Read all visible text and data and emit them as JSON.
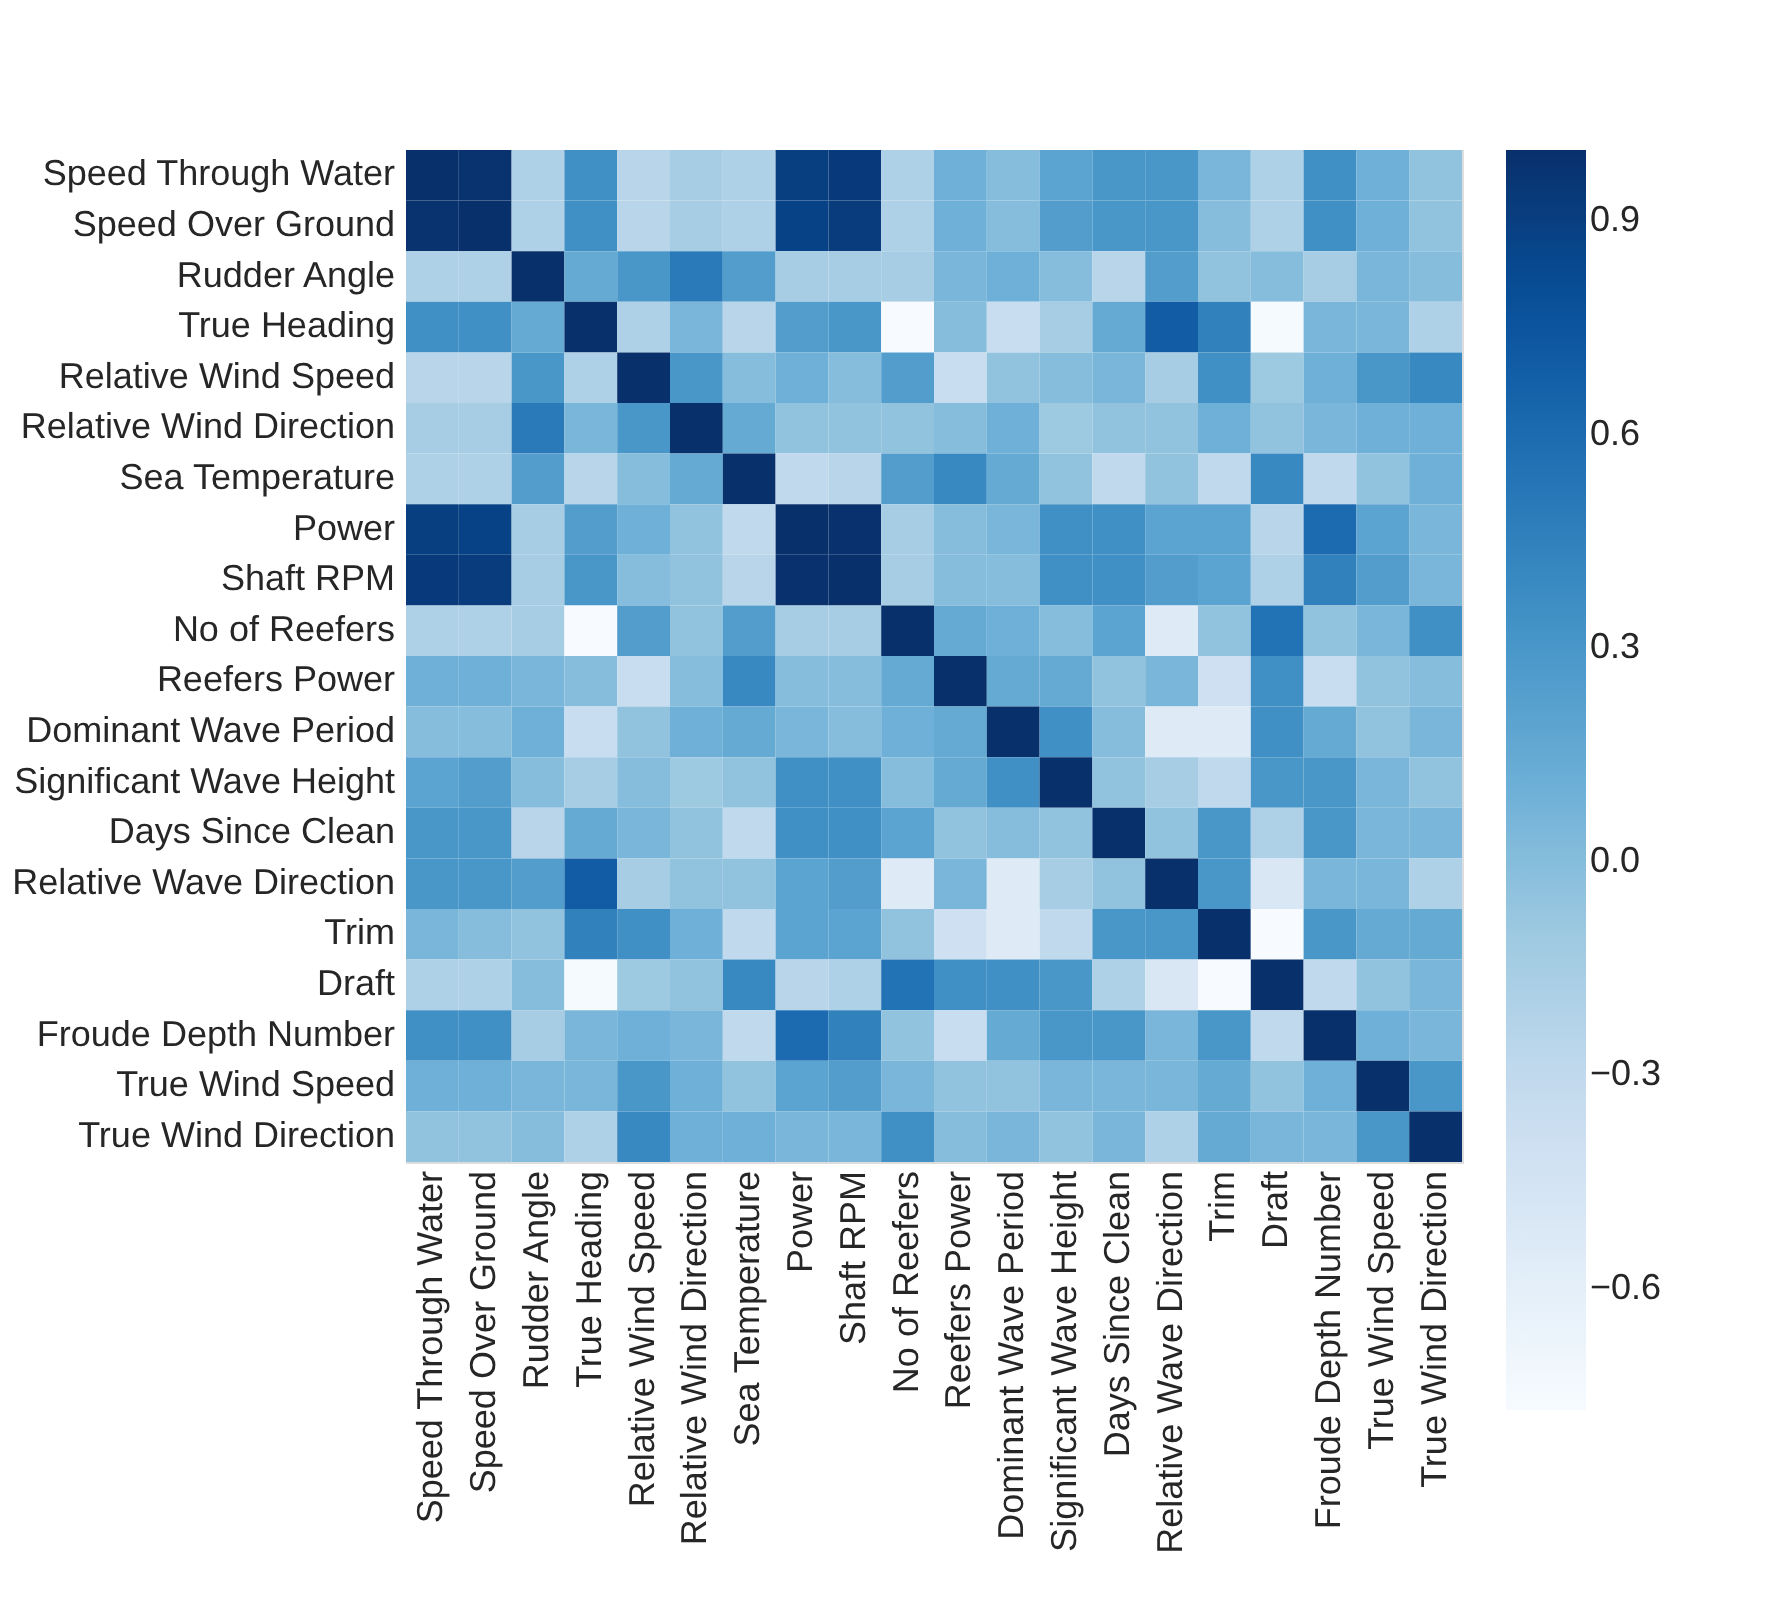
{
  "chart_data": {
    "type": "heatmap",
    "categories": [
      "Speed Through Water",
      "Speed Over Ground",
      "Rudder Angle",
      "True Heading",
      "Relative Wind Speed",
      "Relative Wind Direction",
      "Sea Temperature",
      "Power",
      "Shaft RPM",
      "No of Reefers",
      "Reefers Power",
      "Dominant Wave Period",
      "Significant Wave Height",
      "Days Since Clean",
      "Relative Wave Direction",
      "Trim",
      "Draft",
      "Froude Depth Number",
      "True Wind Speed",
      "True Wind Direction"
    ],
    "y_categories": [
      "Speed Through Water",
      "Speed Over Ground",
      "Rudder Angle",
      "True Heading",
      "Relative Wind Speed",
      "Relative Wind Direction",
      "Sea Temperature",
      "Power",
      "Shaft RPM",
      "No of Reefers",
      "Reefers Power",
      "Dominant Wave Period",
      "Significant Wave Height",
      "Days Since Clean",
      "Relative Wave Direction",
      "Trim",
      "Draft",
      "Froude Depth Number",
      "True Wind Speed",
      "True Wind Direction"
    ],
    "cells": [
      [
        1,
        0.98,
        -0.2,
        0.35,
        -0.25,
        -0.15,
        -0.2,
        0.9,
        0.93,
        -0.2,
        0.1,
        0,
        0.2,
        0.3,
        0.3,
        0.05,
        -0.2,
        0.35,
        0.1,
        -0.05
      ],
      [
        0.98,
        1,
        -0.2,
        0.35,
        -0.25,
        -0.15,
        -0.2,
        0.88,
        0.92,
        -0.2,
        0.1,
        0,
        0.25,
        0.3,
        0.3,
        0,
        -0.2,
        0.35,
        0.1,
        -0.05
      ],
      [
        -0.2,
        -0.2,
        1,
        0.15,
        0.3,
        0.5,
        0.25,
        -0.15,
        -0.15,
        -0.15,
        0.05,
        0.1,
        0,
        -0.25,
        0.25,
        -0.05,
        0,
        -0.15,
        0.05,
        0
      ],
      [
        0.35,
        0.35,
        0.15,
        1,
        -0.2,
        0.05,
        -0.25,
        0.25,
        0.3,
        -0.77,
        0,
        -0.35,
        -0.15,
        0.15,
        0.7,
        0.45,
        -0.75,
        0.05,
        0.05,
        -0.2
      ],
      [
        -0.25,
        -0.25,
        0.3,
        -0.2,
        1,
        0.3,
        0,
        0.1,
        0,
        0.25,
        -0.35,
        -0.05,
        0,
        0.05,
        -0.15,
        0.35,
        -0.1,
        0.1,
        0.3,
        0.4
      ],
      [
        -0.15,
        -0.15,
        0.5,
        0.05,
        0.3,
        1,
        0.15,
        -0.05,
        -0.05,
        -0.05,
        0,
        0.1,
        -0.1,
        -0.05,
        -0.05,
        0.1,
        -0.05,
        0.05,
        0.1,
        0.1
      ],
      [
        -0.2,
        -0.2,
        0.25,
        -0.25,
        0,
        0.15,
        1,
        -0.3,
        -0.25,
        0.25,
        0.4,
        0.15,
        -0.05,
        -0.3,
        -0.05,
        -0.3,
        0.4,
        -0.3,
        -0.05,
        0.1
      ],
      [
        0.9,
        0.88,
        -0.15,
        0.25,
        0.1,
        -0.05,
        -0.3,
        1,
        0.99,
        -0.15,
        0,
        0.05,
        0.35,
        0.35,
        0.2,
        0.2,
        -0.25,
        0.6,
        0.2,
        0.05
      ],
      [
        0.93,
        0.92,
        -0.15,
        0.3,
        0,
        -0.05,
        -0.25,
        0.99,
        1,
        -0.15,
        0,
        0,
        0.35,
        0.35,
        0.25,
        0.2,
        -0.2,
        0.45,
        0.25,
        0.05
      ],
      [
        -0.2,
        -0.2,
        -0.15,
        -0.77,
        0.25,
        -0.05,
        0.25,
        -0.15,
        -0.15,
        1,
        0.15,
        0.1,
        0,
        0.2,
        -0.55,
        -0.05,
        0.55,
        -0.05,
        0.05,
        0.35
      ],
      [
        0.1,
        0.1,
        0.05,
        0,
        -0.35,
        0,
        0.4,
        0,
        0,
        0.15,
        1,
        0.15,
        0.15,
        -0.05,
        0.05,
        -0.4,
        0.35,
        -0.35,
        -0.05,
        0
      ],
      [
        0,
        0,
        0.1,
        -0.35,
        -0.05,
        0.1,
        0.15,
        0.05,
        0,
        0.1,
        0.15,
        1,
        0.35,
        0,
        -0.55,
        -0.55,
        0.35,
        0.15,
        -0.05,
        0.05
      ],
      [
        0.2,
        0.25,
        0,
        -0.15,
        0,
        -0.1,
        -0.05,
        0.35,
        0.35,
        0,
        0.15,
        0.35,
        1,
        -0.05,
        -0.15,
        -0.3,
        0.3,
        0.3,
        0.05,
        -0.05
      ],
      [
        0.3,
        0.3,
        -0.25,
        0.15,
        0.05,
        -0.05,
        -0.3,
        0.35,
        0.35,
        0.2,
        -0.05,
        0,
        -0.05,
        1,
        -0.05,
        0.3,
        -0.2,
        0.3,
        0.05,
        0.05
      ],
      [
        0.3,
        0.3,
        0.25,
        0.7,
        -0.15,
        -0.05,
        -0.05,
        0.2,
        0.25,
        -0.55,
        0.05,
        -0.55,
        -0.15,
        -0.05,
        1,
        0.3,
        -0.5,
        0.05,
        0.05,
        -0.2
      ],
      [
        0.05,
        0,
        -0.05,
        0.45,
        0.35,
        0.1,
        -0.3,
        0.2,
        0.2,
        -0.05,
        -0.4,
        -0.55,
        -0.3,
        0.3,
        0.3,
        1,
        -0.77,
        0.3,
        0.15,
        0.15
      ],
      [
        -0.2,
        -0.2,
        0,
        -0.75,
        -0.1,
        -0.05,
        0.4,
        -0.25,
        -0.2,
        0.55,
        0.35,
        0.35,
        0.3,
        -0.2,
        -0.5,
        -0.77,
        1,
        -0.3,
        -0.05,
        0.05
      ],
      [
        0.35,
        0.35,
        -0.15,
        0.05,
        0.1,
        0.05,
        -0.3,
        0.6,
        0.45,
        -0.05,
        -0.35,
        0.15,
        0.3,
        0.3,
        0.05,
        0.3,
        -0.3,
        1,
        0.1,
        0.05
      ],
      [
        0.1,
        0.1,
        0.05,
        0.05,
        0.3,
        0.1,
        -0.05,
        0.2,
        0.25,
        0.05,
        -0.05,
        -0.05,
        0.05,
        0.05,
        0.05,
        0.15,
        -0.05,
        0.1,
        1,
        0.3
      ],
      [
        -0.05,
        -0.05,
        0,
        -0.2,
        0.4,
        0.1,
        0.1,
        0.05,
        0.05,
        0.35,
        0,
        0.05,
        -0.05,
        0.05,
        -0.2,
        0.15,
        0.05,
        0.05,
        0.3,
        1
      ]
    ],
    "clim": [
      -0.77,
      1.0
    ],
    "cticks": [
      -0.6,
      -0.3,
      0.9,
      0.6,
      0.3,
      {
        "value": 0,
        "label": "0.0"
      }
    ]
  }
}
